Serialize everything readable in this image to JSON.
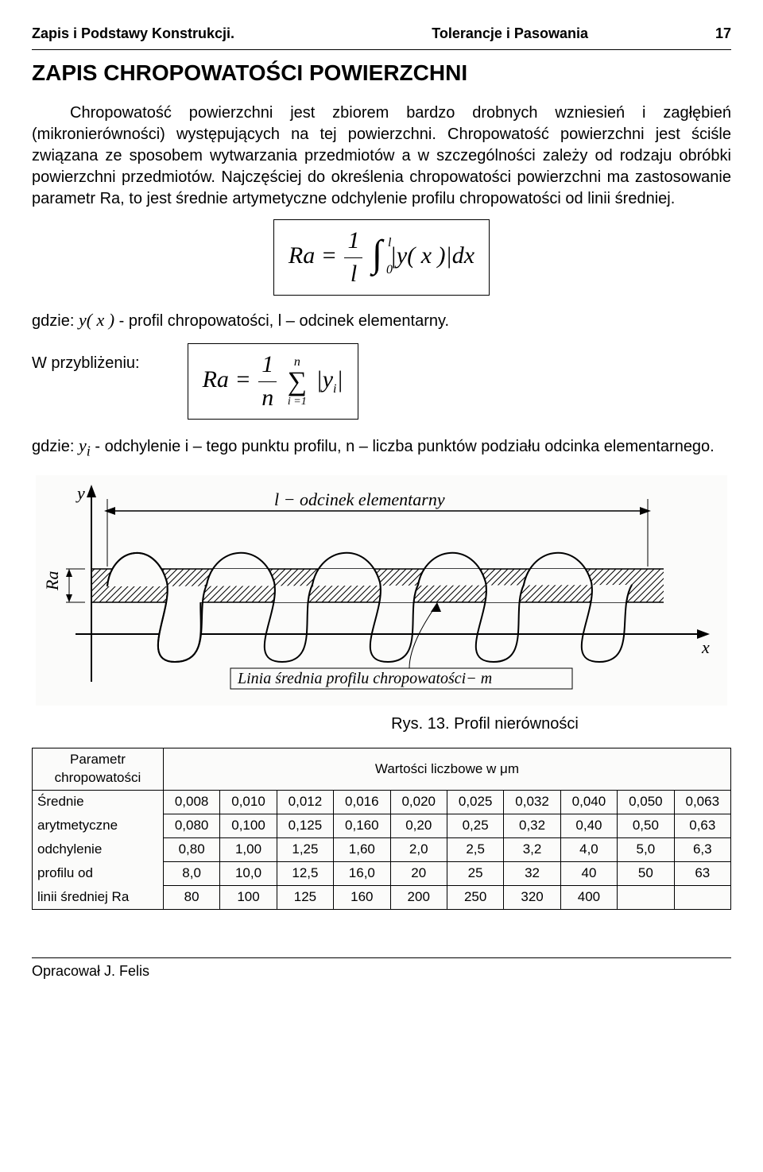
{
  "header": {
    "left": "Zapis i Podstawy Konstrukcji.",
    "center": "Tolerancje i Pasowania",
    "page": "17"
  },
  "title": "ZAPIS CHROPOWATOŚCI POWIERZCHNI",
  "paragraph": "Chropowatość powierzchni jest zbiorem bardzo drobnych wzniesień i zagłębień (mikronierówności) występujących na tej powierzchni. Chropowatość powierzchni jest ściśle związana ze sposobem wytwarzania przedmiotów a w szczególności zależy od rodzaju obróbki powierzchni przedmiotów. Najczęściej do określenia chropowatości powierzchni ma zastosowanie parametr Ra, to jest średnie artymetyczne odchylenie profilu chropowatości od linii średniej.",
  "eq1": {
    "lhs": "Ra",
    "num": "1",
    "den": "l",
    "ub": "l",
    "lb": "0",
    "integrand": "y( x )",
    "dx": "dx"
  },
  "gdzie1": {
    "prefix": "gdzie: ",
    "yx": "y( x )",
    "rest": " - profil chropowatości,  l – odcinek elementarny."
  },
  "approx_label": "W przybliżeniu:",
  "eq2": {
    "lhs": "Ra",
    "num": "1",
    "den": "n",
    "ub": "n",
    "lb": "i =1",
    "term": "y",
    "sub": "i"
  },
  "gdzie2": {
    "prefix": "gdzie: ",
    "yi": "y",
    "yi_sub": "i",
    "rest": "  - odchylenie i – tego punktu profilu, n – liczba punktów podziału odcinka elementarnego."
  },
  "diagram": {
    "y_label": "y",
    "ra_label": "Ra",
    "l_label": "l  −  odcinek  elementarny",
    "mean_label": "Linia  średnia   profilu  chropowatości−  m",
    "x_label": "x"
  },
  "caption": "Rys. 13. Profil nierówności",
  "table": {
    "param_lines": [
      "Parametr",
      "chropowatości"
    ],
    "unit_header": "Wartości liczbowe w μm",
    "row_labels": [
      "Średnie",
      "arytmetyczne",
      "odchylenie",
      "profilu od",
      "linii średniej Ra"
    ],
    "rows": [
      [
        "0,008",
        "0,010",
        "0,012",
        "0,016",
        "0,020",
        "0,025",
        "0,032",
        "0,040",
        "0,050",
        "0,063"
      ],
      [
        "0,080",
        "0,100",
        "0,125",
        "0,160",
        "0,20",
        "0,25",
        "0,32",
        "0,40",
        "0,50",
        "0,63"
      ],
      [
        "0,80",
        "1,00",
        "1,25",
        "1,60",
        "2,0",
        "2,5",
        "3,2",
        "4,0",
        "5,0",
        "6,3"
      ],
      [
        "8,0",
        "10,0",
        "12,5",
        "16,0",
        "20",
        "25",
        "32",
        "40",
        "50",
        "63"
      ],
      [
        "80",
        "100",
        "125",
        "160",
        "200",
        "250",
        "320",
        "400",
        "",
        ""
      ]
    ]
  },
  "footer": "Opracował J.  Felis"
}
